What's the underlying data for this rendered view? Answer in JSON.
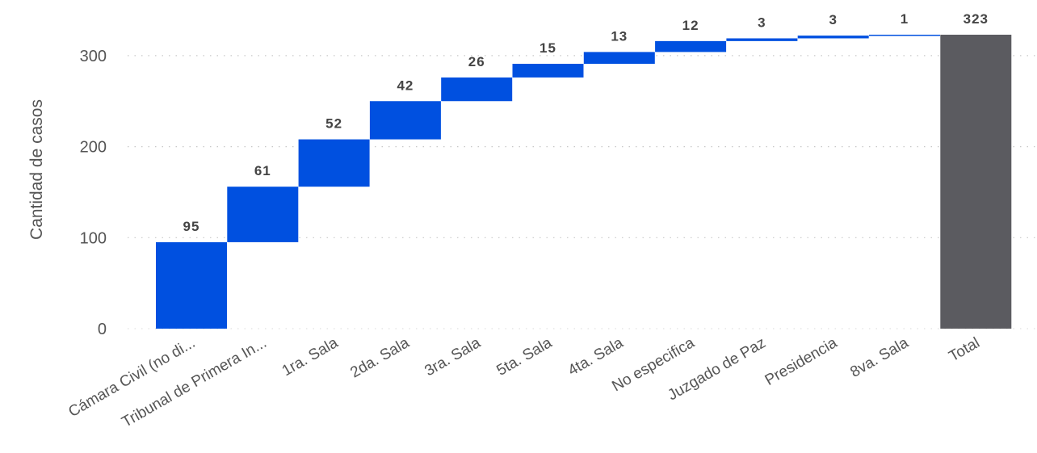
{
  "chart_data": {
    "type": "waterfall",
    "ylabel": "Cantidad de casos",
    "yticks": [
      0,
      100,
      200,
      300
    ],
    "ylim": [
      0,
      330
    ],
    "grid": true,
    "categories": [
      "Cámara Civil (no di...",
      "Tribunal de Primera In...",
      "1ra. Sala",
      "2da. Sala",
      "3ra. Sala",
      "5ta. Sala",
      "4ta. Sala",
      "No especifica",
      "Juzgado de Paz",
      "Presidencia",
      "8va. Sala"
    ],
    "values": [
      95,
      61,
      52,
      42,
      26,
      15,
      13,
      12,
      3,
      3,
      1
    ],
    "total_label": "Total",
    "total": 323,
    "colors": {
      "increase": "#0050E0",
      "total": "#5B5B60",
      "grid": "#c8c8c8",
      "text": "#555555"
    }
  }
}
